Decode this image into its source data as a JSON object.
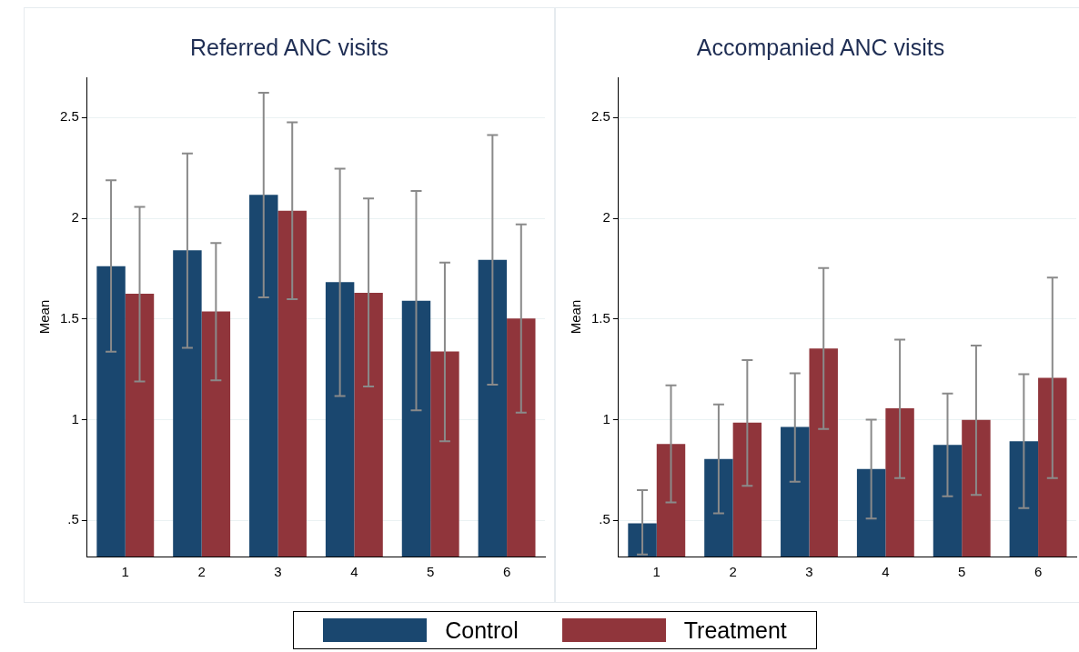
{
  "chart_data": [
    {
      "type": "bar",
      "title": "Referred ANC visits",
      "ylabel": "Mean",
      "categories": [
        "1",
        "2",
        "3",
        "4",
        "5",
        "6"
      ],
      "ylim": [
        0.32,
        2.7
      ],
      "yticks": [
        {
          "value": 0.5,
          "label": ".5"
        },
        1,
        1.5,
        2,
        2.5
      ],
      "grid": "y",
      "legend": "bottom",
      "series": [
        {
          "name": "Control",
          "color": "#1a476f",
          "values": [
            1.762,
            1.841,
            2.116,
            1.683,
            1.59,
            1.793
          ],
          "errors": [
            [
              1.337,
              2.189
            ],
            [
              1.357,
              2.322
            ],
            [
              1.607,
              2.623
            ],
            [
              1.117,
              2.246
            ],
            [
              1.046,
              2.136
            ],
            [
              1.174,
              2.413
            ]
          ]
        },
        {
          "name": "Treatment",
          "color": "#90353b",
          "values": [
            1.625,
            1.537,
            2.037,
            1.63,
            1.338,
            1.502
          ],
          "errors": [
            [
              1.189,
              2.056
            ],
            [
              1.195,
              1.877
            ],
            [
              1.598,
              2.477
            ],
            [
              1.165,
              2.098
            ],
            [
              0.892,
              1.78
            ],
            [
              1.035,
              1.97
            ]
          ]
        }
      ]
    },
    {
      "type": "bar",
      "title": "Accompanied ANC visits",
      "ylabel": "Mean",
      "categories": [
        "1",
        "2",
        "3",
        "4",
        "5",
        "6"
      ],
      "ylim": [
        0.32,
        2.7
      ],
      "yticks": [
        {
          "value": 0.5,
          "label": ".5"
        },
        1,
        1.5,
        2,
        2.5
      ],
      "grid": "y",
      "series": [
        {
          "color": "#1a476f",
          "values": [
            0.485,
            0.804,
            0.963,
            0.755,
            0.874,
            0.892
          ],
          "errors": [
            [
              0.33,
              0.65
            ],
            [
              0.535,
              1.075
            ],
            [
              0.691,
              1.23
            ],
            [
              0.508,
              1.0
            ],
            [
              0.619,
              1.129
            ],
            [
              0.561,
              1.225
            ]
          ]
        },
        {
          "color": "#90353b",
          "values": [
            0.879,
            0.985,
            1.353,
            1.056,
            0.999,
            1.207
          ],
          "errors": [
            [
              0.589,
              1.17
            ],
            [
              0.671,
              1.295
            ],
            [
              0.953,
              1.753
            ],
            [
              0.71,
              1.397
            ],
            [
              0.626,
              1.368
            ],
            [
              0.709,
              1.705
            ]
          ]
        }
      ]
    }
  ]
}
